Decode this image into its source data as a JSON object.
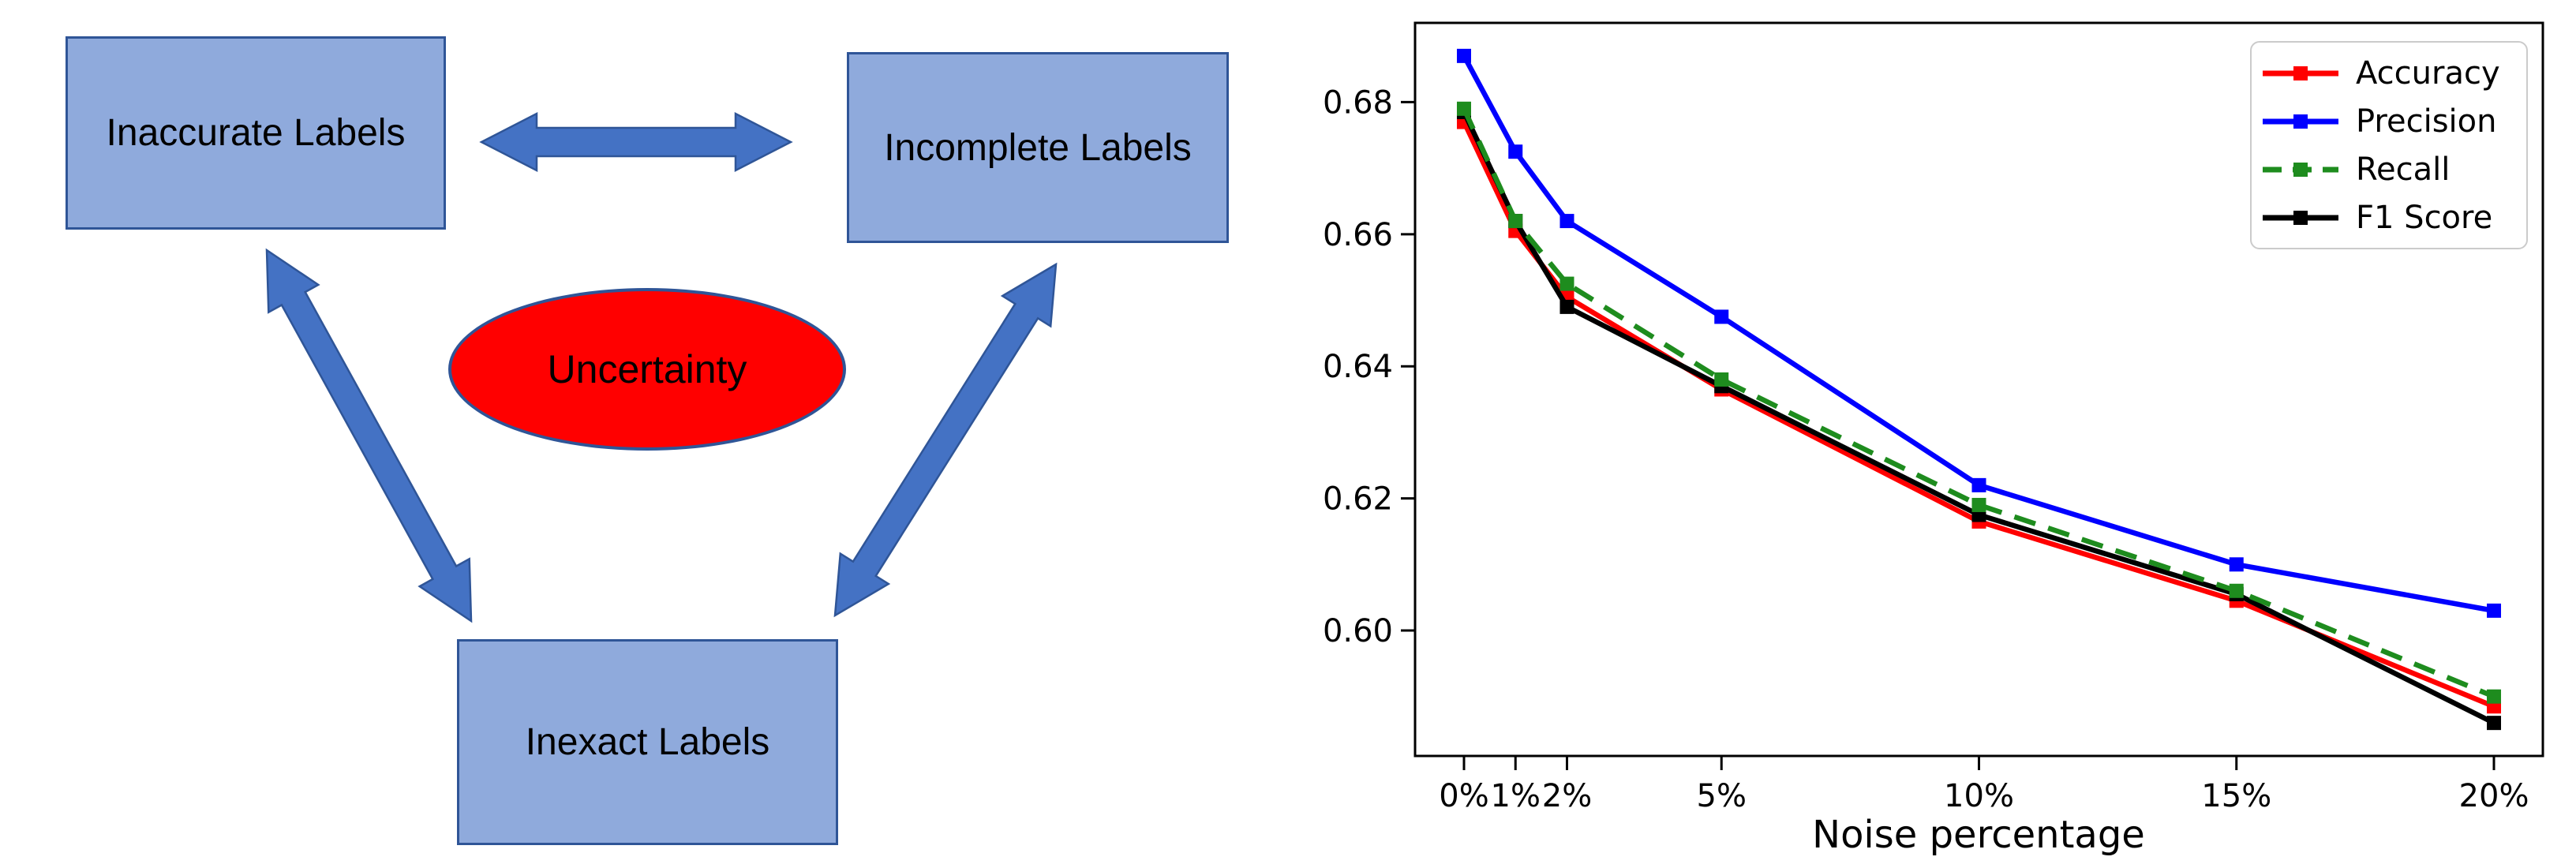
{
  "diagram": {
    "boxes": [
      {
        "id": "inaccurate",
        "label": "Inaccurate Labels"
      },
      {
        "id": "incomplete",
        "label": "Incomplete Labels"
      },
      {
        "id": "inexact",
        "label": "Inexact Labels"
      }
    ],
    "ellipse_label": "Uncertainty",
    "colors": {
      "box_fill": "#8FAADC",
      "box_border": "#2F5597",
      "arrow_fill": "#4472C4",
      "arrow_border": "#2F5597",
      "ellipse_fill": "#FF0000",
      "ellipse_border": "#2F5597",
      "text": "#000000"
    }
  },
  "chart_data": {
    "type": "line",
    "title": "",
    "xlabel": "Noise percentage",
    "ylabel": "",
    "x": [
      0,
      1,
      2,
      5,
      10,
      15,
      20
    ],
    "x_tick_labels": [
      "0%",
      "1%",
      "2%",
      "5%",
      "10%",
      "15%",
      "20%"
    ],
    "y_ticks": [
      0.6,
      0.62,
      0.64,
      0.66,
      0.68
    ],
    "y_tick_labels": [
      "0.60",
      "0.62",
      "0.64",
      "0.66",
      "0.68"
    ],
    "xlim": [
      -0.95,
      20.95
    ],
    "ylim": [
      0.581,
      0.692
    ],
    "grid": false,
    "legend_position": "upper right",
    "series": [
      {
        "name": "Accuracy",
        "color": "#FF0000",
        "dash": "solid",
        "marker": "square",
        "values": [
          0.677,
          0.6605,
          0.6505,
          0.6365,
          0.6165,
          0.6045,
          0.5885
        ]
      },
      {
        "name": "Precision",
        "color": "#0000FF",
        "dash": "solid",
        "marker": "square",
        "values": [
          0.687,
          0.6725,
          0.662,
          0.6475,
          0.622,
          0.61,
          0.603
        ]
      },
      {
        "name": "Recall",
        "color": "#1E8C1E",
        "dash": "dashed",
        "marker": "square",
        "values": [
          0.679,
          0.662,
          0.6525,
          0.638,
          0.619,
          0.606,
          0.59
        ]
      },
      {
        "name": "F1 Score",
        "color": "#000000",
        "dash": "solid",
        "marker": "square",
        "values": [
          0.6785,
          0.662,
          0.649,
          0.637,
          0.6175,
          0.6055,
          0.586
        ]
      }
    ]
  }
}
